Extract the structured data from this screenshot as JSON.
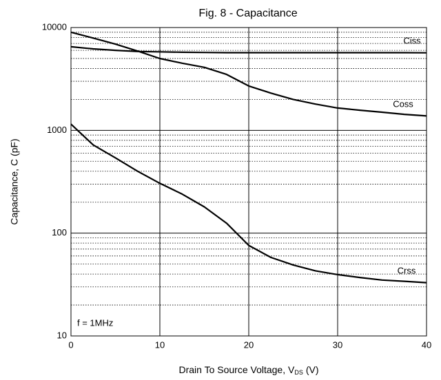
{
  "chart_data": {
    "type": "line",
    "title": "Fig. 8 - Capacitance",
    "xlabel": "Drain To Source Voltage, V",
    "xlabel_sub": "DS",
    "xlabel_unit": "(V)",
    "ylabel": "Capacitance, C (pF)",
    "annotation": "f = 1MHz",
    "x": [
      0,
      2.5,
      5,
      7.5,
      10,
      12.5,
      15,
      17.5,
      20,
      22.5,
      25,
      27.5,
      30,
      32.5,
      35,
      37.5,
      40
    ],
    "series": [
      {
        "name": "Ciss",
        "color": "#000000",
        "values": [
          6500,
          6200,
          6000,
          5850,
          5800,
          5750,
          5720,
          5700,
          5700,
          5700,
          5700,
          5700,
          5700,
          5700,
          5700,
          5700,
          5680
        ]
      },
      {
        "name": "Coss",
        "color": "#000000",
        "values": [
          9000,
          7900,
          6900,
          5900,
          5000,
          4500,
          4100,
          3500,
          2700,
          2300,
          2000,
          1800,
          1650,
          1570,
          1500,
          1430,
          1380
        ]
      },
      {
        "name": "Crss",
        "color": "#000000",
        "values": [
          1150,
          720,
          540,
          400,
          305,
          240,
          180,
          125,
          76,
          58,
          49,
          43,
          39.5,
          37,
          35,
          34,
          33
        ]
      }
    ],
    "xlim": [
      0,
      40
    ],
    "xticks": [
      0,
      10,
      20,
      30,
      40
    ],
    "ylim": [
      10,
      10000
    ],
    "yticks": [
      10,
      100,
      1000,
      10000
    ],
    "ylog": true,
    "grid": true,
    "minor_grid": true
  }
}
